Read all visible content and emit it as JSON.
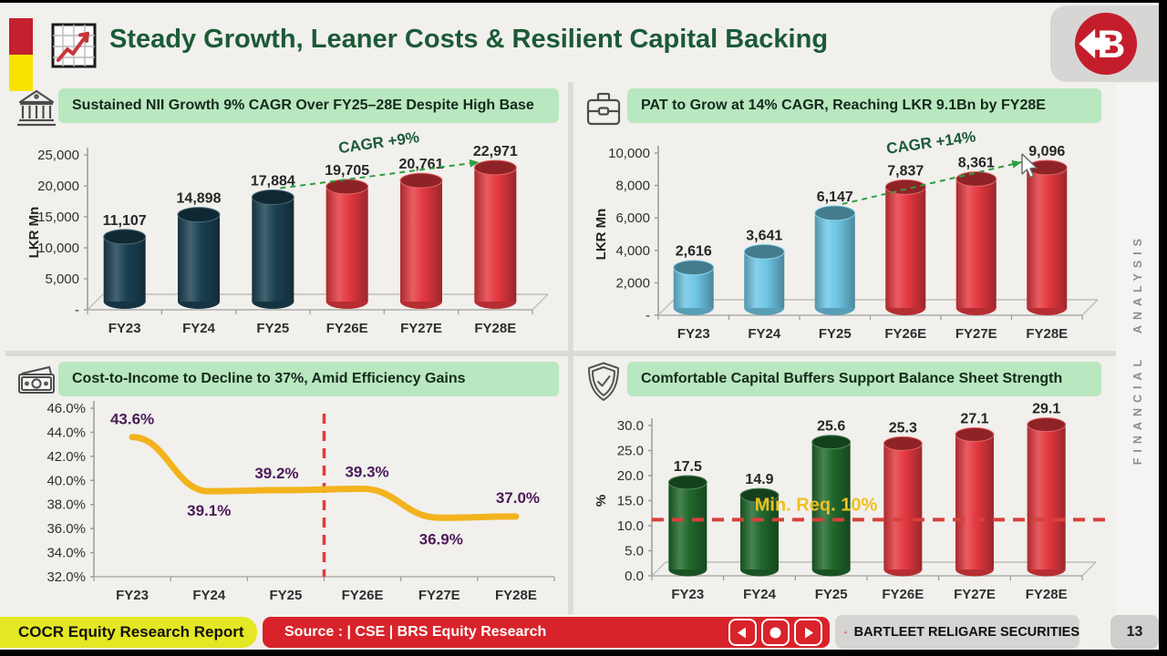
{
  "header": {
    "title": "Steady Growth, Leaner Costs & Resilient Capital Backing"
  },
  "logo_letter": "B",
  "side_label": "FINANCIAL ANALYSIS",
  "footer": {
    "report_label": "COCR Equity Research Report",
    "source_label": "Source : | CSE | BRS Equity Research",
    "brand_label": "BARTLEET RELIGARE SECURITIES",
    "page_number": "13"
  },
  "colors": {
    "title_green": "#1b5a37",
    "banner_green": "#b9e7bf",
    "accent_red": "#c4202e",
    "accent_yellow": "#f8e300",
    "bar_navy": "#1a4152",
    "bar_red": "#e4383f",
    "bar_blue": "#6ec6e5",
    "bar_green": "#20682c",
    "line_yellow": "#f2b31d",
    "label_purple": "#4b1a57",
    "trend_green": "#2f9e3f",
    "min_line_red": "#d8403a",
    "min_label_yellow": "#f0c020",
    "footer_yellow": "#e4e723",
    "footer_red": "#d8232a",
    "logo_red": "#c41e2c"
  },
  "panels": [
    {
      "icon": "bank-icon",
      "title": "Sustained NII Growth 9% CAGR Over FY25–28E Despite High Base"
    },
    {
      "icon": "briefcase-icon",
      "title": "PAT to Grow at 14% CAGR, Reaching LKR 9.1Bn by FY28E"
    },
    {
      "icon": "cash-icon",
      "title": "Cost-to-Income to Decline to 37%, Amid Efficiency Gains"
    },
    {
      "icon": "shield-check-icon",
      "title": "Comfortable Capital Buffers Support Balance Sheet Strength"
    }
  ],
  "chart_data": [
    {
      "type": "bar",
      "subtype": "3d-cylinder",
      "title": "Sustained NII Growth 9% CAGR Over FY25–28E Despite High Base",
      "ylabel": "LKR Mn",
      "categories": [
        "FY23",
        "FY24",
        "FY25",
        "FY26E",
        "FY27E",
        "FY28E"
      ],
      "values": [
        11107,
        14898,
        17884,
        19705,
        20761,
        22971
      ],
      "value_labels": [
        "11,107",
        "14,898",
        "17,884",
        "19,705",
        "20,761",
        "22,971"
      ],
      "ylim": [
        0,
        25000
      ],
      "yticks": [
        25000,
        20000,
        15000,
        10000,
        5000,
        0
      ],
      "ytick_labels": [
        "25,000",
        "20,000",
        "15,000",
        "10,000",
        "5,000",
        "-"
      ],
      "bar_colors": [
        "navy",
        "navy",
        "navy",
        "red",
        "red",
        "red"
      ],
      "grid": false,
      "annotation": {
        "type": "trend-arrow",
        "text": "CAGR +9%",
        "from_index": 2,
        "to_index": 5
      }
    },
    {
      "type": "bar",
      "subtype": "3d-cylinder",
      "title": "PAT to Grow at 14% CAGR, Reaching LKR 9.1Bn by FY28E",
      "ylabel": "LKR Mn",
      "categories": [
        "FY23",
        "FY24",
        "FY25",
        "FY26E",
        "FY27E",
        "FY28E"
      ],
      "values": [
        2616,
        3641,
        6147,
        7837,
        8361,
        9096
      ],
      "value_labels": [
        "2,616",
        "3,641",
        "6,147",
        "7,837",
        "8,361",
        "9,096"
      ],
      "ylim": [
        0,
        10000
      ],
      "yticks": [
        10000,
        8000,
        6000,
        4000,
        2000,
        0
      ],
      "ytick_labels": [
        "10,000",
        "8,000",
        "6,000",
        "4,000",
        "2,000",
        "-"
      ],
      "bar_colors": [
        "blue",
        "blue",
        "blue",
        "red",
        "red",
        "red"
      ],
      "grid": false,
      "annotation": {
        "type": "trend-arrow",
        "text": "CAGR +14%",
        "from_index": 2,
        "to_index": 5
      }
    },
    {
      "type": "line",
      "title": "Cost-to-Income to Decline to 37%, Amid Efficiency Gains",
      "ylabel": "",
      "categories": [
        "FY23",
        "FY24",
        "FY25",
        "FY26E",
        "FY27E",
        "FY28E"
      ],
      "values": [
        43.6,
        39.1,
        39.2,
        39.3,
        36.9,
        37.0
      ],
      "value_labels": [
        "43.6%",
        "39.1%",
        "39.2%",
        "39.3%",
        "36.9%",
        "37.0%"
      ],
      "label_side": [
        "above",
        "below",
        "above",
        "above",
        "below",
        "above"
      ],
      "ylim": [
        32,
        46
      ],
      "yticks": [
        46,
        44,
        42,
        40,
        38,
        36,
        34,
        32
      ],
      "ytick_labels": [
        "46.0%",
        "44.0%",
        "42.0%",
        "40.0%",
        "38.0%",
        "36.0%",
        "34.0%",
        "32.0%"
      ],
      "grid": false,
      "forecast_divider_after_index": 2
    },
    {
      "type": "bar",
      "subtype": "3d-cylinder",
      "title": "Comfortable Capital Buffers Support Balance Sheet Strength",
      "ylabel": "%",
      "categories": [
        "FY23",
        "FY24",
        "FY25",
        "FY26E",
        "FY27E",
        "FY28E"
      ],
      "values": [
        17.5,
        14.9,
        25.6,
        25.3,
        27.1,
        29.1
      ],
      "value_labels": [
        "17.5",
        "14.9",
        "25.6",
        "25.3",
        "27.1",
        "29.1"
      ],
      "ylim": [
        0,
        30
      ],
      "yticks": [
        30,
        25,
        20,
        15,
        10,
        5,
        0
      ],
      "ytick_labels": [
        "30.0",
        "25.0",
        "20.0",
        "15.0",
        "10.0",
        "5.0",
        "0.0"
      ],
      "bar_colors": [
        "green",
        "green",
        "green",
        "red",
        "red",
        "red"
      ],
      "grid": false,
      "reference_line": {
        "value": 10,
        "label": "Min. Req. 10%"
      }
    }
  ]
}
